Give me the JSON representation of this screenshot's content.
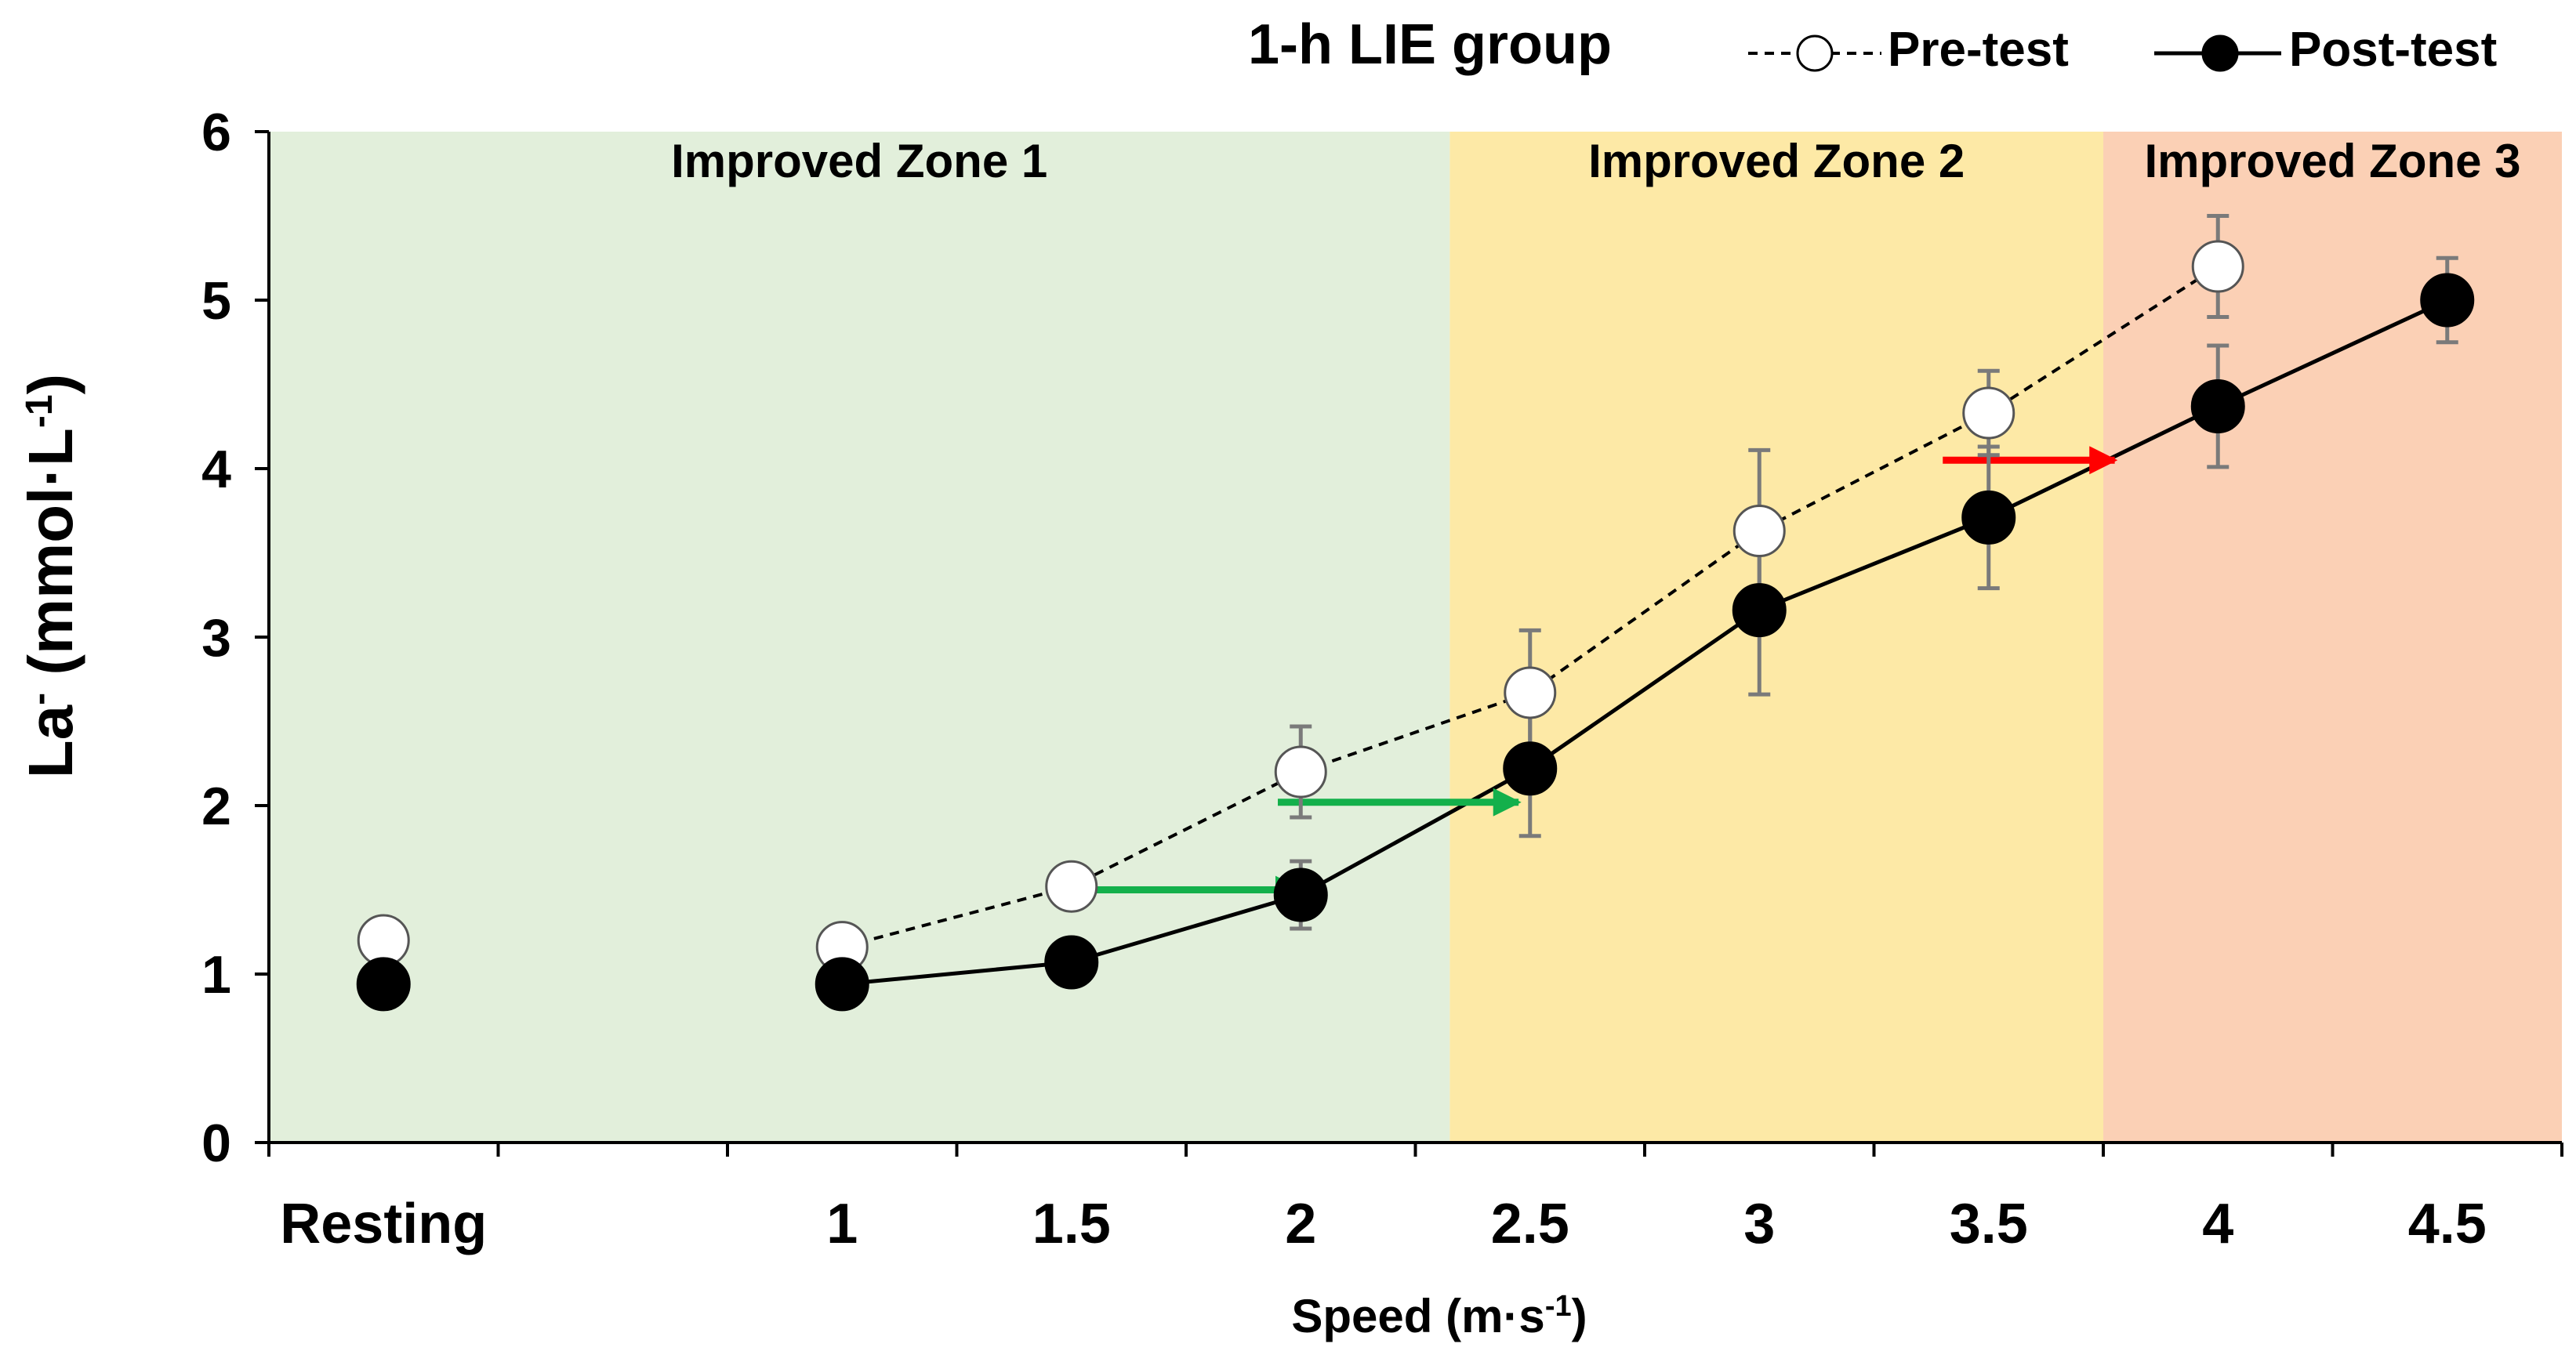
{
  "chart_data": {
    "type": "line",
    "title": "1-h LIE group",
    "xlabel": "Speed (m·s",
    "xlabel_sup": "-1",
    "xlabel_close": ")",
    "ylabel_main": "La",
    "ylabel_sup1": "-",
    "ylabel_mid": " (mmol·L",
    "ylabel_sup2": "-1",
    "ylabel_close": ")",
    "categories": [
      "Resting",
      "",
      "1",
      "1.5",
      "2",
      "2.5",
      "3",
      "3.5",
      "4",
      "4.5"
    ],
    "ylim": [
      0,
      6
    ],
    "yticks": [
      "0",
      "1",
      "2",
      "3",
      "4",
      "5",
      "6"
    ],
    "xlim": [
      -0.5,
      9.5
    ],
    "zones": [
      {
        "label": "Improved Zone 1",
        "from": -0.5,
        "to": 4.65,
        "color": "#e2efdb"
      },
      {
        "label": "Improved Zone 2",
        "from": 4.65,
        "to": 7.5,
        "color": "#fde9a6"
      },
      {
        "label": "Improved Zone 3",
        "from": 7.5,
        "to": 9.5,
        "color": "#fbd0b5"
      }
    ],
    "series": [
      {
        "name": "Pre-test",
        "style": "dashed",
        "marker": "open",
        "resting": {
          "x": 0,
          "y": 1.2,
          "err": 0
        },
        "points": [
          {
            "x": 2,
            "y": 1.16,
            "err": 0
          },
          {
            "x": 3,
            "y": 1.52,
            "err": 0
          },
          {
            "x": 4,
            "y": 2.2,
            "err": 0.27
          },
          {
            "x": 5,
            "y": 2.67,
            "err": 0.37
          },
          {
            "x": 6,
            "y": 3.63,
            "err": 0.48
          },
          {
            "x": 7,
            "y": 4.33,
            "err": 0.25
          },
          {
            "x": 8,
            "y": 5.2,
            "err": 0.3
          }
        ]
      },
      {
        "name": "Post-test",
        "style": "solid",
        "marker": "filled",
        "resting": {
          "x": 0,
          "y": 0.94,
          "err": 0
        },
        "points": [
          {
            "x": 2,
            "y": 0.94,
            "err": 0
          },
          {
            "x": 3,
            "y": 1.07,
            "err": 0
          },
          {
            "x": 4,
            "y": 1.47,
            "err": 0.2
          },
          {
            "x": 5,
            "y": 2.22,
            "err": 0.4
          },
          {
            "x": 6,
            "y": 3.16,
            "err": 0.5
          },
          {
            "x": 7,
            "y": 3.71,
            "err": 0.42
          },
          {
            "x": 8,
            "y": 4.37,
            "err": 0.36
          },
          {
            "x": 9,
            "y": 5.0,
            "err": 0.25
          }
        ]
      }
    ],
    "annotations": [
      {
        "type": "arrow",
        "color": "#13b04b",
        "y": 1.5,
        "x_from": 3.1,
        "x_to": 4.0
      },
      {
        "type": "arrow",
        "color": "#13b04b",
        "y": 2.02,
        "x_from": 3.9,
        "x_to": 4.95
      },
      {
        "type": "arrow",
        "color": "#ff0000",
        "y": 4.05,
        "x_from": 6.8,
        "x_to": 7.55
      }
    ]
  }
}
